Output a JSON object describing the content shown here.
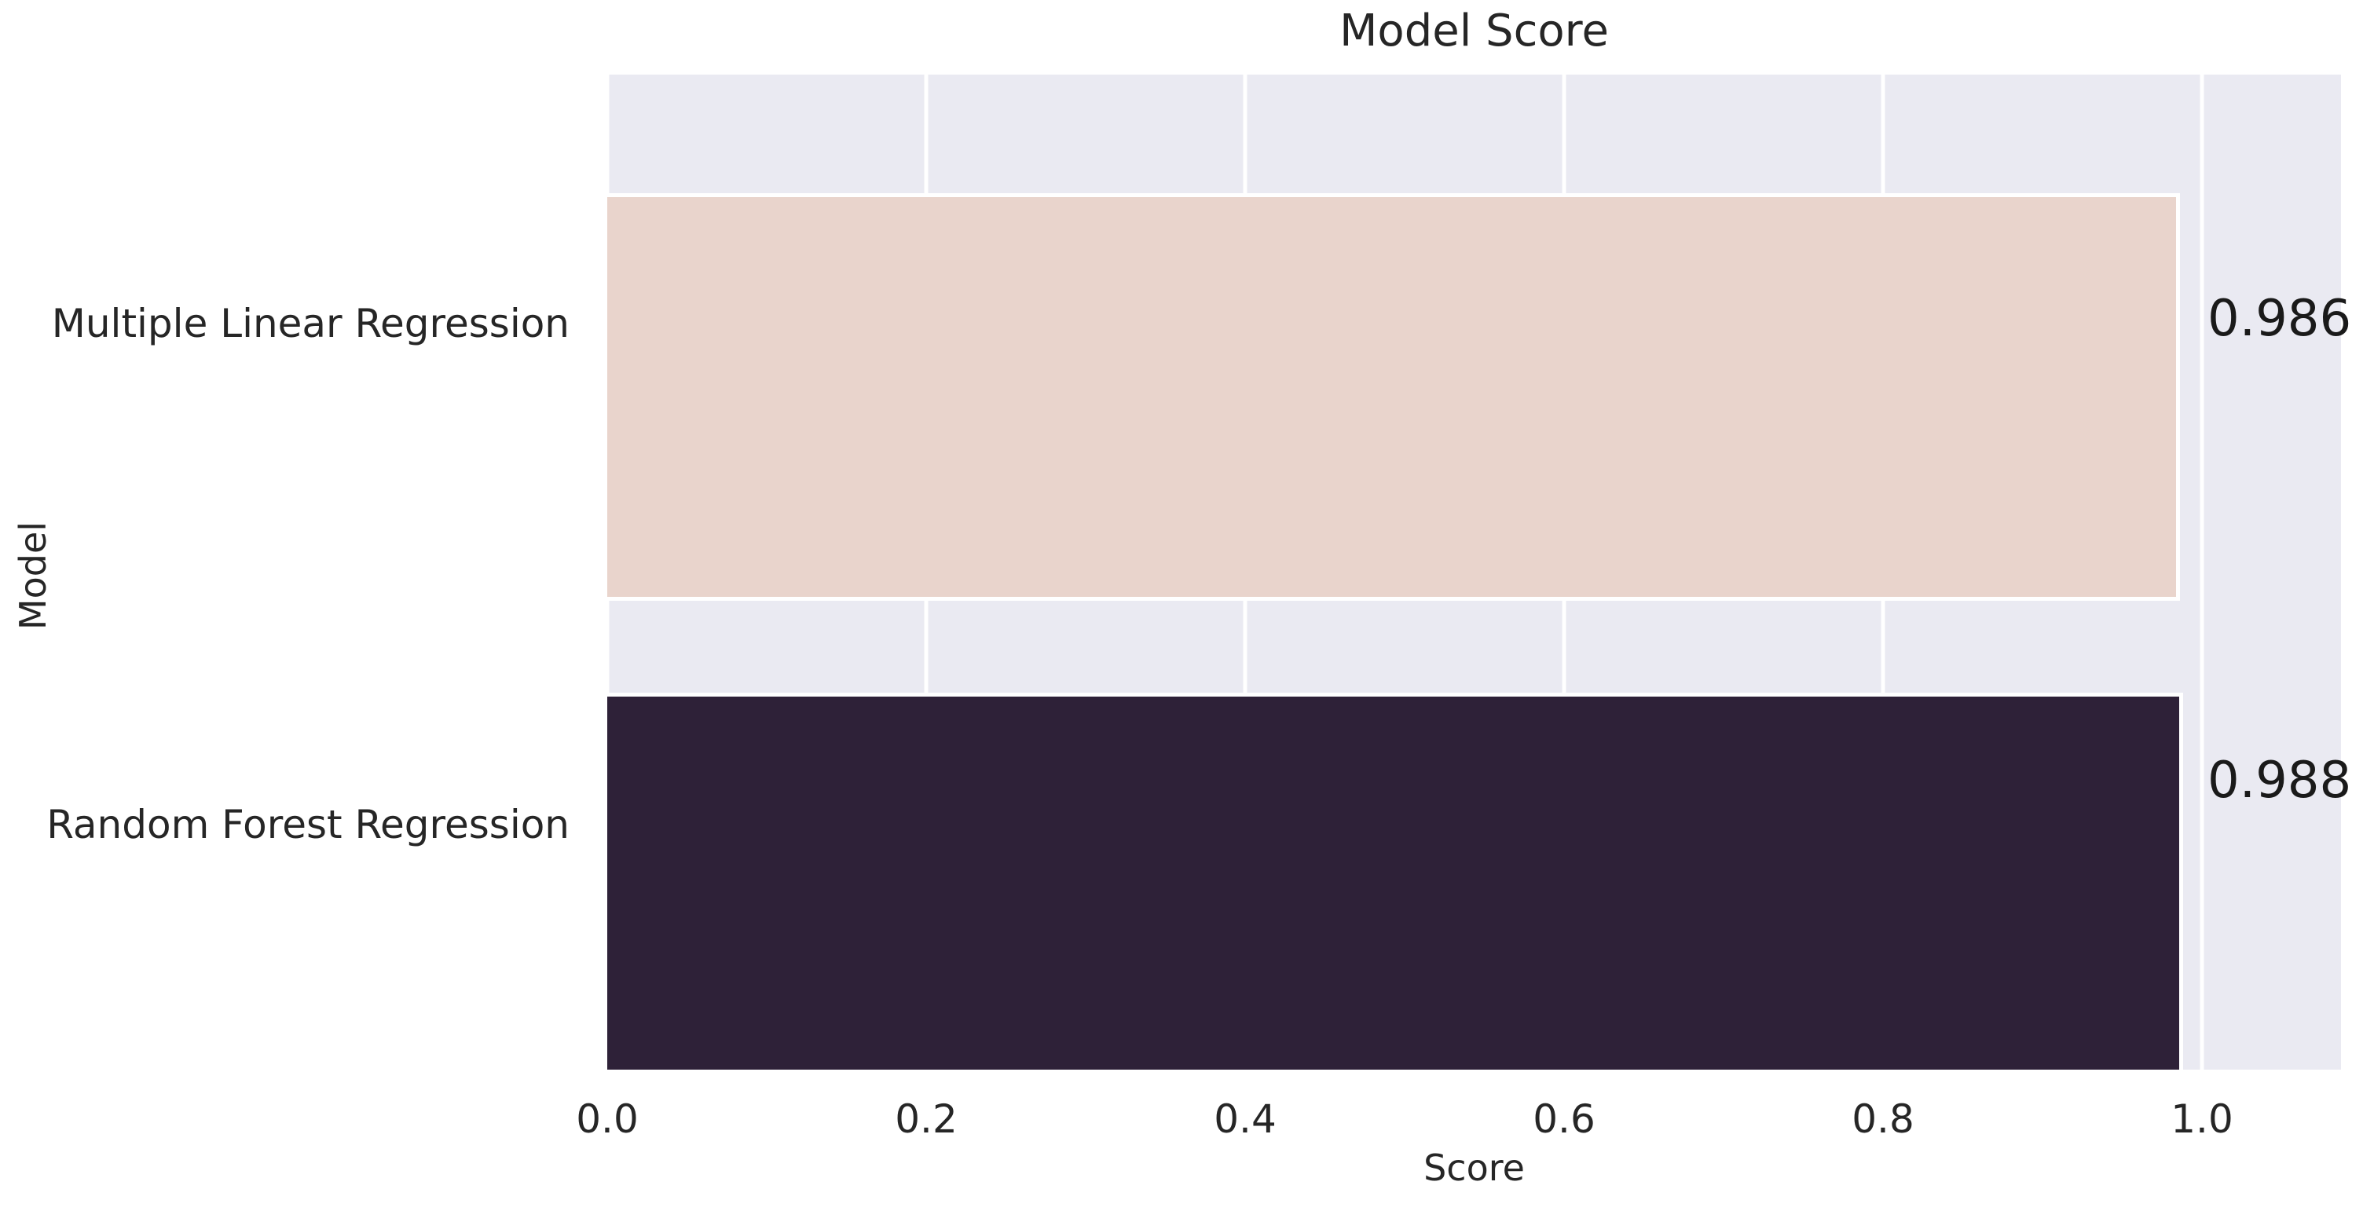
{
  "chart_data": {
    "type": "bar",
    "orientation": "horizontal",
    "title": "Model Score",
    "xlabel": "Score",
    "ylabel": "Model",
    "categories": [
      "Multiple Linear Regression",
      "Random Forest Regression"
    ],
    "values": [
      0.986,
      0.988
    ],
    "value_labels": [
      "0.986",
      "0.988"
    ],
    "xticks": [
      0,
      0.2,
      0.4,
      0.6,
      0.8,
      1.0
    ],
    "xtick_labels": [
      "0.0",
      "0.2",
      "0.4",
      "0.6",
      "0.8",
      "1.0"
    ],
    "xlim": [
      0,
      1.087
    ],
    "grid": "vertical white gridlines at x ticks",
    "legend_position": "none",
    "colors": {
      "bars": [
        "#e9d4cc",
        "#2e2138"
      ],
      "plot_background": "#eaeaf2",
      "gridline": "#ffffff",
      "figure_background": "#ffffff",
      "text": "#262626"
    }
  }
}
